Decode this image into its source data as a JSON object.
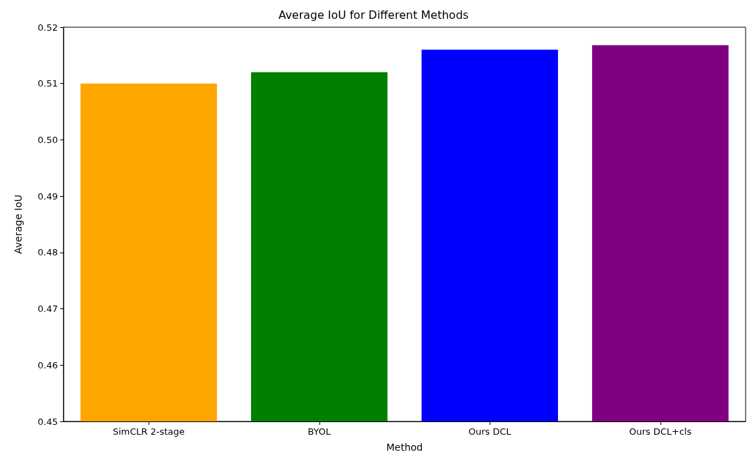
{
  "chart_data": {
    "type": "bar",
    "title": "Average IoU for Different Methods",
    "xlabel": "Method",
    "ylabel": "Average IoU",
    "categories": [
      "SimCLR 2-stage",
      "BYOL",
      "Ours DCL",
      "Ours DCL+cls"
    ],
    "values": [
      0.51,
      0.512,
      0.516,
      0.5168
    ],
    "colors": [
      "#ffa500",
      "#008000",
      "#0000ff",
      "#800080"
    ],
    "ylim": [
      0.45,
      0.52
    ],
    "yticks": [
      0.45,
      0.46,
      0.47,
      0.48,
      0.49,
      {
        "value": 0.5,
        "label": "0.50"
      },
      0.51,
      0.52
    ],
    "grid": false
  }
}
